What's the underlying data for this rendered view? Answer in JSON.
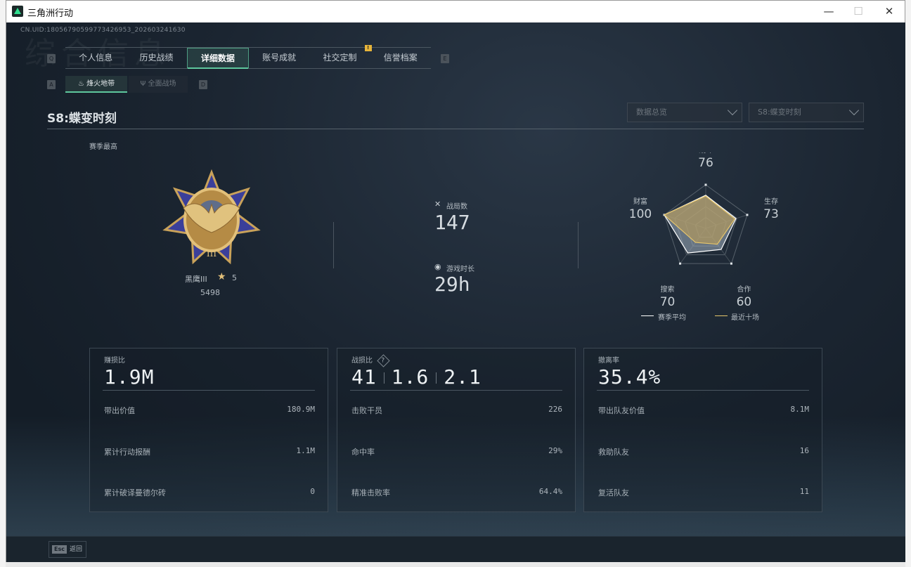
{
  "window": {
    "title": "三角洲行动",
    "minimize": "—",
    "maximize": "☐",
    "close": "✕"
  },
  "uid": "CN.UID:18056790599773426953_202603241630",
  "bg_word": "综合信息",
  "tabs": {
    "prev_key": "Q",
    "next_key": "E",
    "items": [
      {
        "label": "个人信息"
      },
      {
        "label": "历史战绩"
      },
      {
        "label": "详细数据",
        "active": true
      },
      {
        "label": "账号成就"
      },
      {
        "label": "社交定制",
        "badge": "!"
      },
      {
        "label": "信誉档案"
      }
    ]
  },
  "subtabs": {
    "prev_key": "A",
    "next_key": "D",
    "items": [
      {
        "label": "烽火地带",
        "icon": "flame-zone-icon",
        "active": true
      },
      {
        "label": "全面战场",
        "icon": "warfare-icon"
      }
    ]
  },
  "season_title": "S8:蝶变时刻",
  "dropdowns": [
    {
      "value": "数据总览"
    },
    {
      "value": "S8:蝶变时刻"
    }
  ],
  "rank": {
    "label": "赛季最高",
    "name": "黑鹰III",
    "stars": "5",
    "score": "5498",
    "colors": {
      "gold": "#c9a25a",
      "blue": "#3b3f9a"
    }
  },
  "summary": {
    "matches_label": "战局数",
    "matches": "147",
    "time_label": "游戏时长",
    "time": "29h"
  },
  "radar": {
    "axes": [
      {
        "label": "战斗",
        "value": "76"
      },
      {
        "label": "生存",
        "value": "73"
      },
      {
        "label": "合作",
        "value": "60"
      },
      {
        "label": "搜索",
        "value": "70"
      },
      {
        "label": "财富",
        "value": "100"
      }
    ],
    "max": 100,
    "series": [
      {
        "name": "赛季平均",
        "values": [
          76,
          73,
          60,
          70,
          100
        ],
        "color": "#ffffff"
      },
      {
        "name": "最近十场",
        "values": [
          74,
          70,
          45,
          40,
          100
        ],
        "color": "#e5c56c"
      }
    ]
  },
  "cards": [
    {
      "title": "赚损比",
      "value": "1.9M",
      "rows": [
        {
          "label": "带出价值",
          "value": "180.9M"
        },
        {
          "label": "累计行动报酬",
          "value": "1.1M"
        },
        {
          "label": "累计破译曼德尔砖",
          "value": "0"
        }
      ]
    },
    {
      "title": "战损比",
      "help": "?",
      "values": [
        "41",
        "1.6",
        "2.1"
      ],
      "rows": [
        {
          "label": "击败干员",
          "value": "226"
        },
        {
          "label": "命中率",
          "value": "29%"
        },
        {
          "label": "精准击败率",
          "value": "64.4%"
        }
      ]
    },
    {
      "title": "撤离率",
      "value": "35.4%",
      "rows": [
        {
          "label": "带出队友价值",
          "value": "8.1M"
        },
        {
          "label": "救助队友",
          "value": "16"
        },
        {
          "label": "复活队友",
          "value": "11"
        }
      ]
    }
  ],
  "footer": {
    "key": "Esc",
    "label": "返回"
  }
}
